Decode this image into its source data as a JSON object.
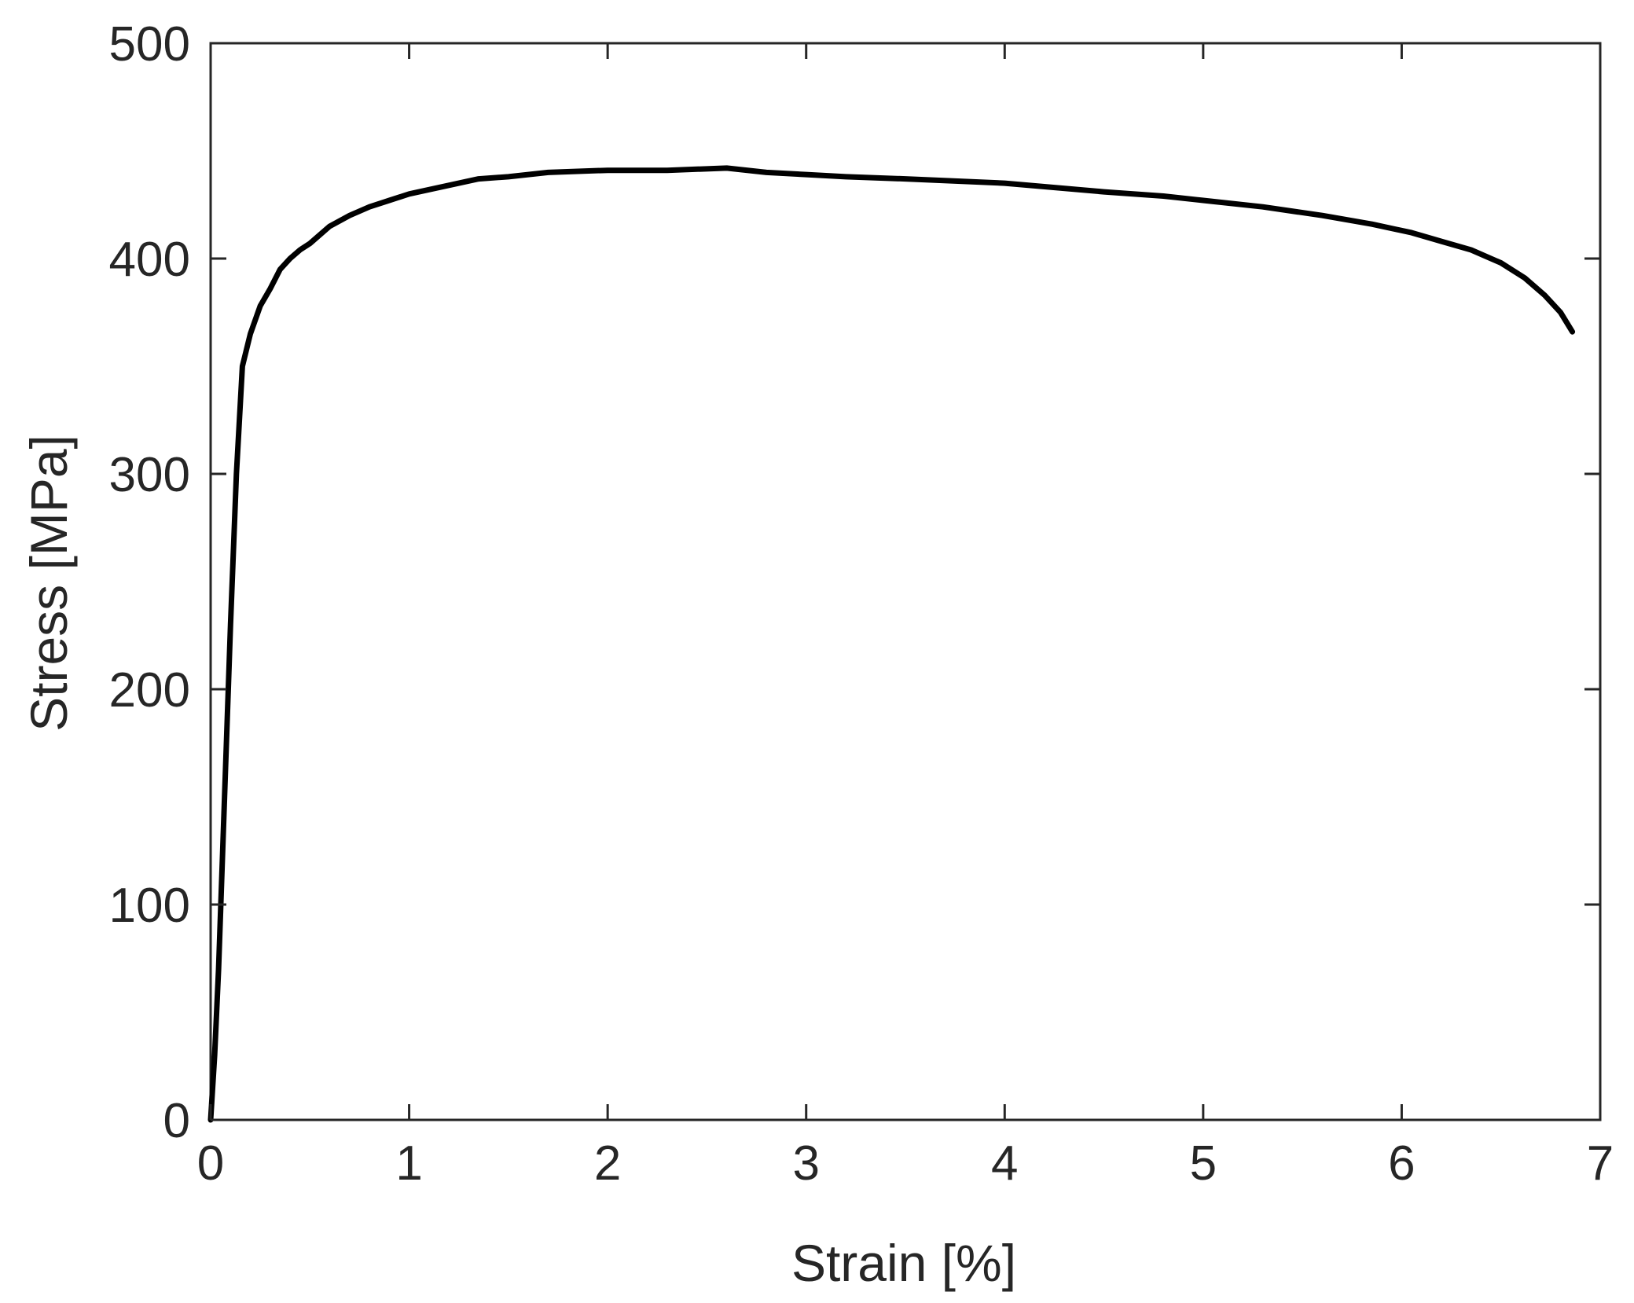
{
  "chart_data": {
    "type": "line",
    "title": "",
    "xlabel": "Strain [%]",
    "ylabel": "Stress [MPa]",
    "xlim": [
      0,
      7
    ],
    "ylim": [
      0,
      500
    ],
    "xticks": [
      0,
      1,
      2,
      3,
      4,
      5,
      6,
      7
    ],
    "yticks": [
      0,
      100,
      200,
      300,
      400,
      500
    ],
    "xtick_labels": [
      "0",
      "1",
      "2",
      "3",
      "4",
      "5",
      "6",
      "7"
    ],
    "ytick_labels": [
      "0",
      "100",
      "200",
      "300",
      "400",
      "500"
    ],
    "grid": false,
    "legend": "none",
    "line_color": "#000000",
    "series": [
      {
        "x": [
          0,
          0.02,
          0.04,
          0.07,
          0.1,
          0.13,
          0.16,
          0.2,
          0.25,
          0.3,
          0.35,
          0.4,
          0.45,
          0.5,
          0.6,
          0.7,
          0.8,
          0.9,
          1.0,
          1.1,
          1.2,
          1.35,
          1.5,
          1.7,
          2.0,
          2.3,
          2.6,
          2.8,
          3.0,
          3.2,
          3.5,
          4.0,
          4.5,
          4.8,
          5.0,
          5.3,
          5.6,
          5.85,
          6.05,
          6.2,
          6.35,
          6.5,
          6.62,
          6.72,
          6.8,
          6.86
        ],
        "y": [
          0,
          30,
          70,
          150,
          230,
          300,
          350,
          365,
          378,
          386,
          395,
          400,
          404,
          407,
          415,
          420,
          424,
          427,
          430,
          432,
          434,
          437,
          438,
          440,
          441,
          441,
          442,
          440,
          439,
          438,
          437,
          435,
          431,
          429,
          427,
          424,
          420,
          416,
          412,
          408,
          404,
          398,
          391,
          383,
          375,
          366
        ]
      }
    ]
  }
}
